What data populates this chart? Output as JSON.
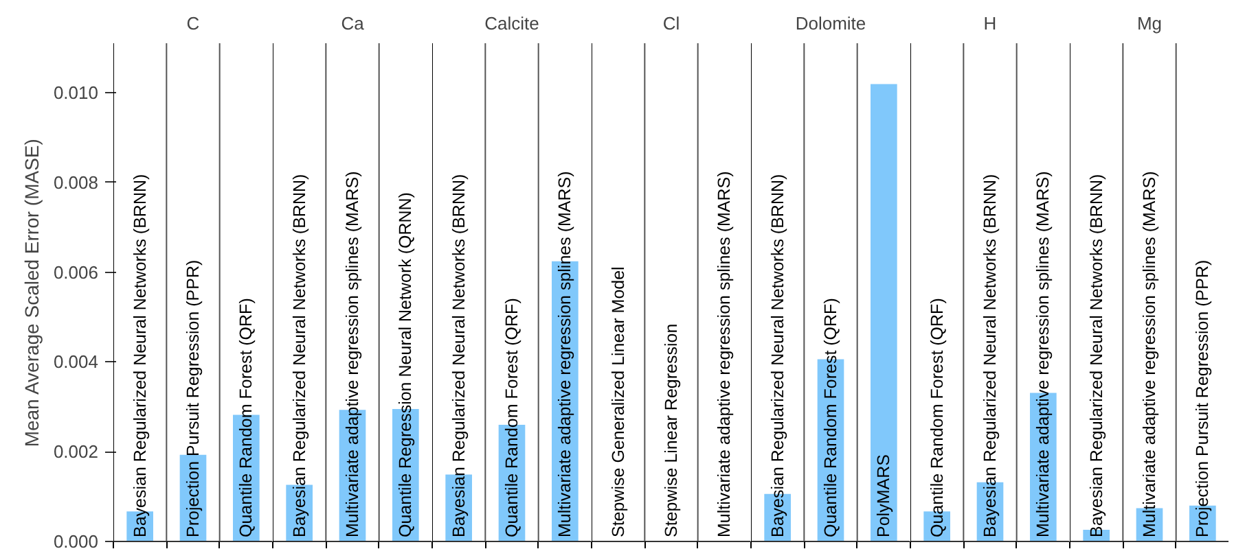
{
  "chart_data": [
    {
      "type": "bar",
      "title": "C",
      "ylabel": "Mean Average Scaled Error (MASE)",
      "categories": [
        "Bayesian Regularized Neural Networks (BRNN)",
        "Projection Pursuit Regression (PPR)",
        "Quantile Random Forest (QRF)"
      ],
      "values": [
        0.00067,
        0.00193,
        0.00282
      ],
      "color": "#80c8fb",
      "ylim": [
        0,
        0.0111
      ],
      "yticks": [
        {
          "value": 0,
          "label": "0.000"
        },
        {
          "value": 0.002,
          "label": "0.002"
        },
        {
          "value": 0.004,
          "label": "0.004"
        },
        {
          "value": 0.006,
          "label": "0.006"
        },
        {
          "value": 0.008,
          "label": "0.008"
        },
        {
          "value": 0.01,
          "label": "0.010"
        }
      ],
      "tick_labels": "y"
    },
    {
      "type": "bar",
      "title": "Ca",
      "categories": [
        "Bayesian Regularized Neural Networks (BRNN)",
        "Multivariate adaptive regression splines (MARS)",
        "Quantile Regression Neural Network (QRNN)"
      ],
      "values": [
        0.00126,
        0.00293,
        0.00295
      ],
      "color": "#80c8fb",
      "ylim": [
        0,
        0.0111
      ],
      "tick_labels": false
    },
    {
      "type": "bar",
      "title": "Calcite",
      "categories": [
        "Bayesian Regularized Neural Networks (BRNN)",
        "Quantile Random Forest (QRF)",
        "Multivariate adaptive regression splines (MARS)"
      ],
      "values": [
        0.00149,
        0.0026,
        0.00624
      ],
      "color": "#80c8fb",
      "ylim": [
        0,
        0.0111
      ],
      "tick_labels": false
    },
    {
      "type": "bar",
      "title": "Cl",
      "categories": [
        "Stepwise Generalized Linear Model",
        "Stepwise Linear Regression",
        "Multivariate adaptive regression splines (MARS)"
      ],
      "values": [
        null,
        null,
        null
      ],
      "ylim": [
        0,
        0.0111
      ],
      "tick_labels": false
    },
    {
      "type": "bar",
      "title": "Dolomite",
      "categories": [
        "Bayesian Regularized Neural Networks (BRNN)",
        "Quantile Random Forest (QRF)",
        "PolyMARS"
      ],
      "values": [
        0.00106,
        0.00406,
        0.01019
      ],
      "color": "#80c8fb",
      "ylim": [
        0,
        0.0111
      ],
      "tick_labels": false
    },
    {
      "type": "bar",
      "title": "H",
      "categories": [
        "Quantile Random Forest (QRF)",
        "Bayesian Regularized Neural Networks (BRNN)",
        "Multivariate adaptive regression splines (MARS)"
      ],
      "values": [
        0.00067,
        0.00132,
        0.00331
      ],
      "color": "#80c8fb",
      "ylim": [
        0,
        0.0111
      ],
      "tick_labels": false
    },
    {
      "type": "bar",
      "title": "Mg",
      "categories": [
        "Bayesian Regularized Neural Networks (BRNN)",
        "Multivariate adaptive regression splines (MARS)",
        "Projection Pursuit Regression (PPR)"
      ],
      "values": [
        0.00026,
        0.00074,
        0.0008
      ],
      "color": "#80c8fb",
      "ylim": [
        0,
        0.0111
      ],
      "tick_labels": false
    }
  ]
}
